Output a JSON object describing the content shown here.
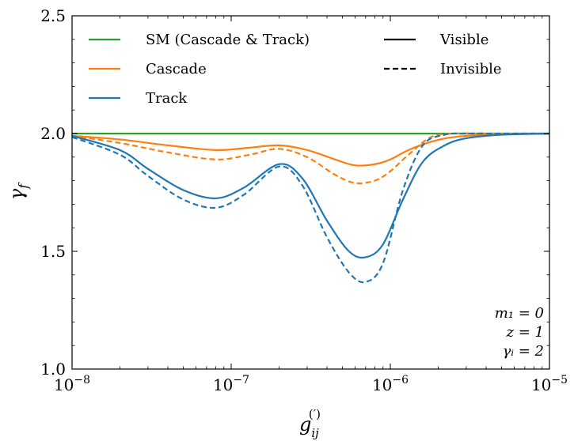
{
  "chart_data": {
    "type": "line",
    "xscale": "log",
    "xlabel": "g_ij^(′)",
    "ylabel": "γ_f",
    "xlim": [
      1e-08,
      1e-05
    ],
    "ylim": [
      1.0,
      2.5
    ],
    "yticks": [
      "1.0",
      "1.5",
      "2.0",
      "2.5"
    ],
    "xticks": [
      {
        "value": 1e-08,
        "base": "10",
        "exp": "−8"
      },
      {
        "value": 1e-07,
        "base": "10",
        "exp": "−7"
      },
      {
        "value": 1e-06,
        "base": "10",
        "exp": "−6"
      },
      {
        "value": 1e-05,
        "base": "10",
        "exp": "−5"
      }
    ],
    "grid": false,
    "legend_placement": "top",
    "legend": {
      "series": [
        {
          "label": "SM (Cascade & Track)",
          "color": "#2ca02c"
        },
        {
          "label": "Cascade",
          "color": "#ff7f0e"
        },
        {
          "label": "Track",
          "color": "#1f77b4"
        }
      ],
      "styles": [
        {
          "label": "Visible",
          "dash": "solid"
        },
        {
          "label": "Invisible",
          "dash": "dashed"
        }
      ]
    },
    "annotations": [
      "m₁ = 0",
      "z = 1",
      "γᵢ = 2"
    ],
    "series": [
      {
        "name": "SM (Cascade & Track)",
        "style": "solid",
        "color": "#2ca02c",
        "x": [
          1e-08,
          1e-05
        ],
        "y": [
          2.0,
          2.0
        ]
      },
      {
        "name": "Cascade",
        "style": "solid",
        "color": "#ff7f0e",
        "x": [
          1e-08,
          2e-08,
          4e-08,
          8e-08,
          1.3e-07,
          2e-07,
          3e-07,
          4.5e-07,
          6e-07,
          8e-07,
          1e-06,
          1.3e-06,
          1.8e-06,
          2.5e-06,
          4e-06,
          1e-05
        ],
        "y": [
          1.99,
          1.975,
          1.95,
          1.93,
          1.94,
          1.95,
          1.93,
          1.89,
          1.865,
          1.87,
          1.89,
          1.93,
          1.965,
          1.985,
          1.995,
          2.0
        ]
      },
      {
        "name": "Cascade",
        "style": "dashed",
        "color": "#ff7f0e",
        "x": [
          1e-08,
          2e-08,
          4e-08,
          8e-08,
          1.3e-07,
          2e-07,
          3e-07,
          4.5e-07,
          6e-07,
          8e-07,
          1e-06,
          1.3e-06,
          1.8e-06,
          2.5e-06,
          4e-06,
          1e-05
        ],
        "y": [
          1.99,
          1.96,
          1.92,
          1.89,
          1.91,
          1.935,
          1.9,
          1.825,
          1.79,
          1.8,
          1.84,
          1.91,
          1.985,
          2.0,
          2.0,
          2.0
        ]
      },
      {
        "name": "Track",
        "style": "solid",
        "color": "#1f77b4",
        "x": [
          1e-08,
          2e-08,
          3e-08,
          5e-08,
          8e-08,
          1.2e-07,
          2e-07,
          2.8e-07,
          4e-07,
          5.5e-07,
          7e-07,
          9e-07,
          1.2e-06,
          1.6e-06,
          2.2e-06,
          3e-06,
          5e-06,
          1e-05
        ],
        "y": [
          1.99,
          1.93,
          1.85,
          1.76,
          1.725,
          1.77,
          1.87,
          1.81,
          1.63,
          1.5,
          1.475,
          1.53,
          1.72,
          1.88,
          1.95,
          1.98,
          1.995,
          2.0
        ]
      },
      {
        "name": "Track",
        "style": "dashed",
        "color": "#1f77b4",
        "x": [
          1e-08,
          2e-08,
          3e-08,
          5e-08,
          8e-08,
          1.2e-07,
          2e-07,
          2.8e-07,
          4e-07,
          5.5e-07,
          7e-07,
          9e-07,
          1.2e-06,
          1.6e-06,
          2.2e-06,
          3e-06,
          5e-06,
          1e-05
        ],
        "y": [
          1.985,
          1.91,
          1.82,
          1.72,
          1.685,
          1.74,
          1.86,
          1.78,
          1.56,
          1.41,
          1.37,
          1.45,
          1.76,
          1.95,
          1.995,
          2.0,
          2.0,
          2.0
        ]
      }
    ]
  }
}
